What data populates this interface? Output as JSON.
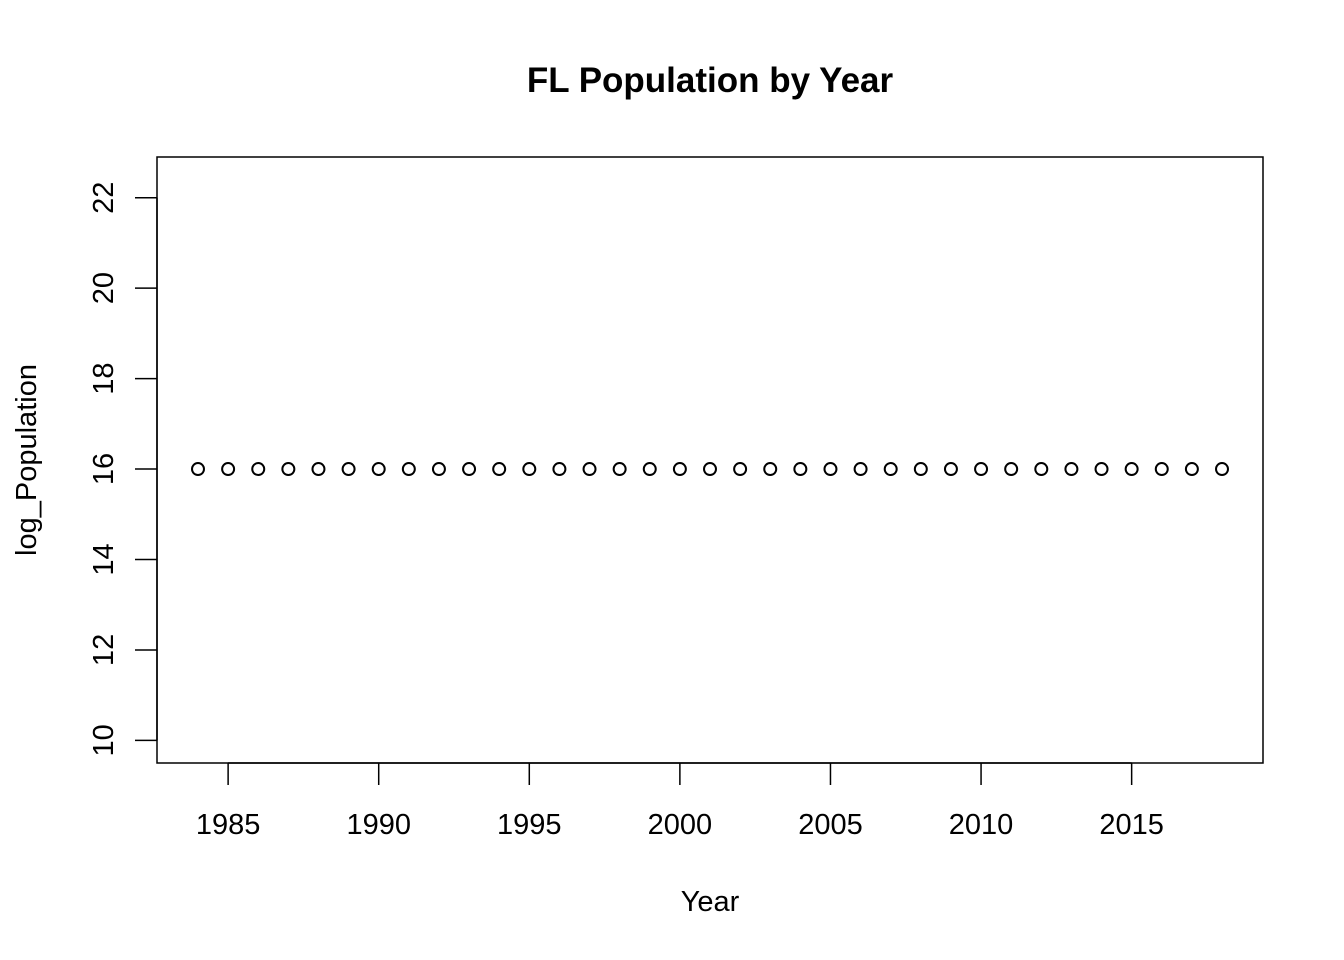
{
  "chart_data": {
    "type": "scatter",
    "title": "FL Population by Year",
    "xlabel": "Year",
    "ylabel": "log_Population",
    "xlim": [
      1984,
      2018
    ],
    "ylim": [
      9.5,
      22.9
    ],
    "x_ticks": [
      1985,
      1990,
      1995,
      2000,
      2005,
      2010,
      2015
    ],
    "y_ticks": [
      10,
      12,
      14,
      16,
      18,
      20,
      22
    ],
    "marker": "open-circle",
    "grid": false,
    "legend": "none",
    "colors": {
      "points": "#000000",
      "axes": "#000000",
      "background": "#ffffff"
    },
    "series": [
      {
        "x": [
          1984,
          1985,
          1986,
          1987,
          1988,
          1989,
          1990,
          1991,
          1992,
          1993,
          1994,
          1995,
          1996,
          1997,
          1998,
          1999,
          2000,
          2001,
          2002,
          2003,
          2004,
          2005,
          2006,
          2007,
          2008,
          2009,
          2010,
          2011,
          2012,
          2013,
          2014,
          2015,
          2016,
          2017,
          2018
        ],
        "y": [
          16,
          16,
          16,
          16,
          16,
          16,
          16,
          16,
          16,
          16,
          16,
          16,
          16,
          16,
          16,
          16,
          16,
          16,
          16,
          16,
          16,
          16,
          16,
          16,
          16,
          16,
          16,
          16,
          16,
          16,
          16,
          16,
          16,
          16,
          16
        ]
      }
    ]
  }
}
